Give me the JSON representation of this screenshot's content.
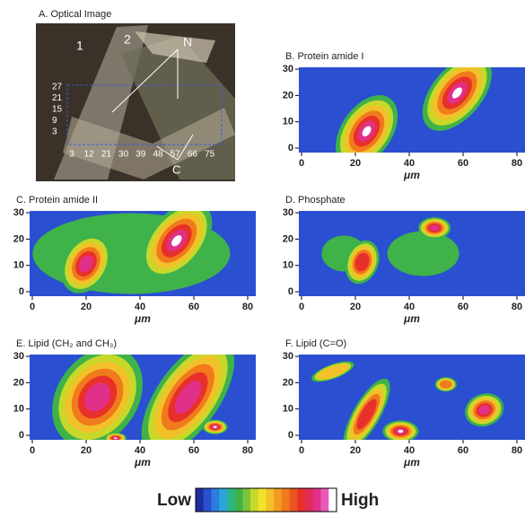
{
  "optical_image": {
    "title": "A. Optical Image",
    "labels": [
      "1",
      "2",
      "N",
      "C"
    ],
    "y_ticks": [
      27,
      21,
      15,
      9,
      3
    ],
    "x_ticks": [
      3,
      12,
      21,
      30,
      39,
      48,
      57,
      66,
      75
    ]
  },
  "chart_data": [
    {
      "type": "heatmap",
      "title": "B. Protein amide I",
      "x_label": "μm",
      "xlim": [
        -1,
        83
      ],
      "ylim": [
        -1.7,
        30.7
      ],
      "xticks": [
        0,
        20,
        40,
        60,
        80
      ],
      "yticks": [
        0,
        10,
        20,
        30
      ]
    },
    {
      "type": "heatmap",
      "title": "C. Protein amide II",
      "x_label": "μm",
      "xlim": [
        -1,
        83
      ],
      "ylim": [
        -1.7,
        30.7
      ],
      "xticks": [
        0,
        20,
        40,
        60,
        80
      ],
      "yticks": [
        0,
        10,
        20,
        30
      ]
    },
    {
      "type": "heatmap",
      "title": "D. Phosphate",
      "x_label": "μm",
      "xlim": [
        -1,
        83
      ],
      "ylim": [
        -1.7,
        30.7
      ],
      "xticks": [
        0,
        20,
        40,
        60,
        80
      ],
      "yticks": [
        0,
        10,
        20,
        30
      ]
    },
    {
      "type": "heatmap",
      "title": "E. Lipid (CH₂ and CH₃)",
      "x_label": "μm",
      "xlim": [
        -1,
        83
      ],
      "ylim": [
        -1.7,
        30.7
      ],
      "xticks": [
        0,
        20,
        40,
        60,
        80
      ],
      "yticks": [
        0,
        10,
        20,
        30
      ]
    },
    {
      "type": "heatmap",
      "title": "F. Lipid (C=O)",
      "x_label": "μm",
      "xlim": [
        -1,
        83
      ],
      "ylim": [
        -1.7,
        30.7
      ],
      "xticks": [
        0,
        20,
        40,
        60,
        80
      ],
      "yticks": [
        0,
        10,
        20,
        30
      ]
    }
  ],
  "colorbar": {
    "low": "Low",
    "high": "High",
    "colors": [
      "#1c2f9c",
      "#2a4fd0",
      "#2f7be0",
      "#28a6d8",
      "#2cb58a",
      "#3fb24a",
      "#7cc43a",
      "#c8d82a",
      "#f2e22a",
      "#f2c12a",
      "#f29a22",
      "#f07a1c",
      "#ec5420",
      "#e8302a",
      "#e02a5a",
      "#e0308a",
      "#e85ab8",
      "#ffffff"
    ]
  }
}
